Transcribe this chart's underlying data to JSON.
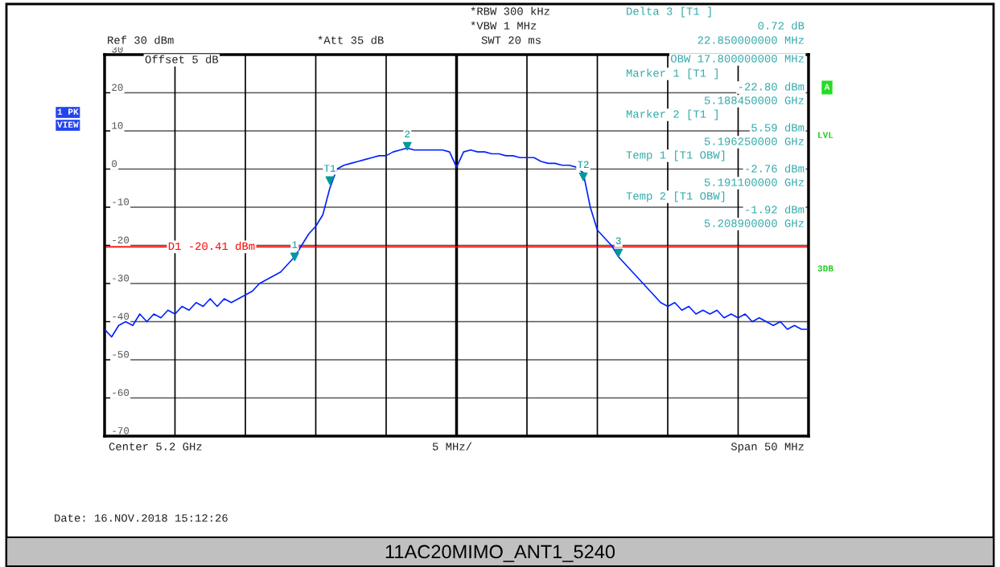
{
  "chart_data": {
    "type": "line",
    "title": "11AC20MIMO_ANT1_5240",
    "categories": [
      null,
      null,
      null,
      null,
      null,
      null,
      null,
      null,
      null,
      null,
      null,
      null,
      null,
      null,
      null,
      null,
      null,
      null,
      null,
      null,
      null,
      null,
      null,
      null,
      null,
      null,
      null,
      null,
      null,
      null,
      null,
      null,
      null,
      null,
      null,
      null,
      null,
      null,
      null,
      null,
      null,
      null,
      null,
      null,
      null,
      null,
      null,
      null,
      null,
      null,
      null,
      null,
      null,
      null,
      null,
      null,
      null,
      null,
      null,
      null,
      null,
      null,
      null,
      null,
      null,
      null,
      null,
      null,
      null,
      null,
      null,
      null,
      null,
      null,
      null,
      null,
      null,
      null,
      null,
      null,
      null,
      null,
      null,
      null,
      null,
      null,
      null,
      null,
      null,
      null,
      null,
      null,
      null,
      null,
      null,
      null,
      null,
      null,
      null,
      null,
      null
    ],
    "series": [
      {
        "color": "#0022ff",
        "values": [
          -42,
          -44,
          -41,
          -40,
          -41,
          -38,
          -40,
          -38,
          -39,
          -37,
          -38,
          -36,
          -37,
          -35,
          -36,
          -34,
          -36,
          -34,
          -35,
          -34,
          -33,
          -32,
          -30,
          -29,
          -28,
          -27,
          -25,
          -23,
          -20,
          -17,
          -15,
          -12,
          -5,
          0,
          1,
          1.5,
          2,
          2.5,
          3,
          3.5,
          3.5,
          4.5,
          5,
          5.5,
          5,
          5,
          5,
          5,
          5,
          4.5,
          0.5,
          4.5,
          5,
          4.5,
          4.5,
          4,
          4,
          3.5,
          3.5,
          3,
          3,
          3,
          2,
          1.5,
          1.5,
          1,
          1,
          0.5,
          -1,
          -10,
          -16,
          -18,
          -20,
          -23,
          -25,
          -27,
          -29,
          -31,
          -33,
          -35,
          -36,
          -35,
          -37,
          -36,
          -38,
          -37,
          -38,
          -37,
          -39,
          -38,
          -39,
          -38,
          -40,
          -39,
          -40,
          -41,
          -40,
          -42,
          -41,
          -42,
          -42
        ]
      },
      {
        "type": "scatter",
        "name": "1",
        "color": "#009999",
        "marker": "triangle",
        "values": [
          null,
          null,
          null,
          null,
          null,
          null,
          null,
          null,
          null,
          null,
          null,
          null,
          null,
          null,
          null,
          null,
          null,
          null,
          null,
          null,
          null,
          null,
          null,
          null,
          null,
          null,
          null,
          -23,
          null,
          null,
          null,
          null,
          null,
          null,
          null,
          null,
          null,
          null,
          null,
          null,
          null,
          null,
          null,
          null,
          null,
          null,
          null,
          null,
          null,
          null,
          null,
          null,
          null,
          null,
          null,
          null,
          null,
          null,
          null,
          null,
          null,
          null,
          null,
          null,
          null,
          null,
          null,
          null,
          null,
          null,
          null,
          null,
          null,
          null,
          null,
          null,
          null,
          null,
          null,
          null,
          null,
          null,
          null,
          null,
          null,
          null,
          null,
          null,
          null,
          null,
          null,
          null,
          null,
          null,
          null,
          null,
          null,
          null,
          null,
          null,
          null
        ]
      },
      {
        "type": "scatter",
        "name": "T1",
        "color": "#009999",
        "marker": "triangle",
        "values": [
          null,
          null,
          null,
          null,
          null,
          null,
          null,
          null,
          null,
          null,
          null,
          null,
          null,
          null,
          null,
          null,
          null,
          null,
          null,
          null,
          null,
          null,
          null,
          null,
          null,
          null,
          null,
          null,
          null,
          null,
          null,
          null,
          -3,
          null,
          null,
          null,
          null,
          null,
          null,
          null,
          null,
          null,
          null,
          null,
          null,
          null,
          null,
          null,
          null,
          null,
          null,
          null,
          null,
          null,
          null,
          null,
          null,
          null,
          null,
          null,
          null,
          null,
          null,
          null,
          null,
          null,
          null,
          null,
          null,
          null,
          null,
          null,
          null,
          null,
          null,
          null,
          null,
          null,
          null,
          null,
          null,
          null,
          null,
          null,
          null,
          null,
          null,
          null,
          null,
          null,
          null,
          null,
          null,
          null,
          null,
          null,
          null,
          null,
          null,
          null,
          null
        ]
      },
      {
        "type": "scatter",
        "name": "2",
        "color": "#009999",
        "marker": "triangle",
        "values": [
          null,
          null,
          null,
          null,
          null,
          null,
          null,
          null,
          null,
          null,
          null,
          null,
          null,
          null,
          null,
          null,
          null,
          null,
          null,
          null,
          null,
          null,
          null,
          null,
          null,
          null,
          null,
          null,
          null,
          null,
          null,
          null,
          null,
          null,
          null,
          null,
          null,
          null,
          null,
          null,
          null,
          null,
          null,
          6,
          null,
          null,
          null,
          null,
          null,
          null,
          null,
          null,
          null,
          null,
          null,
          null,
          null,
          null,
          null,
          null,
          null,
          null,
          null,
          null,
          null,
          null,
          null,
          null,
          null,
          null,
          null,
          null,
          null,
          null,
          null,
          null,
          null,
          null,
          null,
          null,
          null,
          null,
          null,
          null,
          null,
          null,
          null,
          null,
          null,
          null,
          null,
          null,
          null,
          null,
          null,
          null,
          null,
          null,
          null,
          null,
          null
        ]
      },
      {
        "type": "scatter",
        "name": "T2",
        "color": "#009999",
        "marker": "triangle",
        "values": [
          null,
          null,
          null,
          null,
          null,
          null,
          null,
          null,
          null,
          null,
          null,
          null,
          null,
          null,
          null,
          null,
          null,
          null,
          null,
          null,
          null,
          null,
          null,
          null,
          null,
          null,
          null,
          null,
          null,
          null,
          null,
          null,
          null,
          null,
          null,
          null,
          null,
          null,
          null,
          null,
          null,
          null,
          null,
          null,
          null,
          null,
          null,
          null,
          null,
          null,
          null,
          null,
          null,
          null,
          null,
          null,
          null,
          null,
          null,
          null,
          null,
          null,
          null,
          null,
          null,
          null,
          null,
          null,
          -2,
          null,
          null,
          null,
          null,
          null,
          null,
          null,
          null,
          null,
          null,
          null,
          null,
          null,
          null,
          null,
          null,
          null,
          null,
          null,
          null,
          null,
          null,
          null,
          null,
          null,
          null,
          null,
          null,
          null,
          null,
          null,
          null
        ]
      },
      {
        "type": "scatter",
        "name": "3",
        "color": "#009999",
        "marker": "triangle",
        "values": [
          null,
          null,
          null,
          null,
          null,
          null,
          null,
          null,
          null,
          null,
          null,
          null,
          null,
          null,
          null,
          null,
          null,
          null,
          null,
          null,
          null,
          null,
          null,
          null,
          null,
          null,
          null,
          null,
          null,
          null,
          null,
          null,
          null,
          null,
          null,
          null,
          null,
          null,
          null,
          null,
          null,
          null,
          null,
          null,
          null,
          null,
          null,
          null,
          null,
          null,
          null,
          null,
          null,
          null,
          null,
          null,
          null,
          null,
          null,
          null,
          null,
          null,
          null,
          null,
          null,
          null,
          null,
          null,
          null,
          null,
          null,
          null,
          null,
          -22,
          null,
          null,
          null,
          null,
          null,
          null,
          null,
          null,
          null,
          null,
          null,
          null,
          null,
          null,
          null,
          null,
          null,
          null,
          null,
          null,
          null,
          null,
          null,
          null,
          null,
          null,
          null
        ]
      }
    ],
    "ylim": [
      -70,
      30
    ],
    "yticks": [
      30,
      20,
      10,
      0,
      -10,
      -20,
      -30,
      -40,
      -50,
      -60,
      -70
    ],
    "tick_labels": "y",
    "grid": true,
    "ref_lines": [
      {
        "axis": "y",
        "value": -20.41,
        "label": "D1 -20.41 dBm",
        "color": "#ff0000"
      }
    ],
    "annotations": [
      "*RBW 300 kHz",
      "*VBW 1 MHz",
      "SWT 20 ms",
      "Ref 30 dBm",
      "*Att 35 dB",
      "Offset 5 dB",
      "Delta 3 [T1 ]",
      "0.72 dB",
      "22.850000000 MHz",
      "OBW 17.800000000 MHz",
      "Marker 1 [T1 ]",
      "-22.80 dBm",
      "5.188450000 GHz",
      "Marker 2 [T1 ]",
      "5.59 dBm",
      "5.196250000 GHz",
      "Temp 1 [T1 OBW]",
      "-2.76 dBm",
      "5.191100000 GHz",
      "Temp 2 [T1 OBW]",
      "-1.92 dBm",
      "5.208900000 GHz",
      "1 PK",
      "VIEW",
      "A",
      "LVL",
      "3DB",
      "Center 5.2 GHz",
      "5 MHz/",
      "Span 50 MHz",
      "Date: 16.NOV.2018 15:12:26"
    ]
  }
}
